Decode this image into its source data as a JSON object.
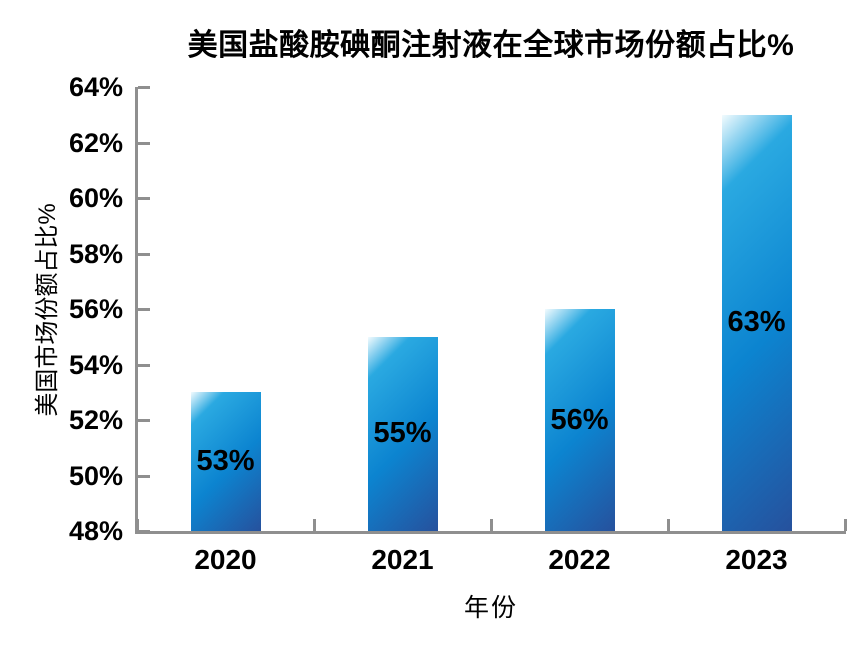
{
  "chart_data": {
    "type": "bar",
    "title": "美国盐酸胺碘酮注射液在全球市场份额占比%",
    "xlabel": "年份",
    "ylabel": "美国市场份额占比%",
    "categories": [
      "2020",
      "2021",
      "2022",
      "2023"
    ],
    "values": [
      53,
      55,
      56,
      63
    ],
    "bar_labels": [
      "53%",
      "55%",
      "56%",
      "63%"
    ],
    "ylim": [
      48,
      64
    ],
    "ytick_step": 2,
    "ytick_labels": [
      "48%",
      "50%",
      "52%",
      "54%",
      "56%",
      "58%",
      "60%",
      "62%",
      "64%"
    ],
    "grid": false,
    "legend": "none",
    "bar_label_position": "inside-center",
    "colors": {
      "bar_gradient": [
        "#f2fbfe",
        "#2aa9e1",
        "#0c84d0",
        "#26519d"
      ],
      "axis": "#8f8f8f",
      "text": "#000000",
      "background": "#ffffff"
    }
  }
}
